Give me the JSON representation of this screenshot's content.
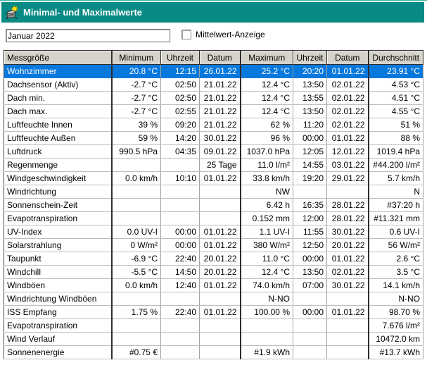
{
  "window": {
    "title": "Minimal- und Maximalwerte"
  },
  "toolbar": {
    "period_value": "Januar 2022",
    "checkbox_label": "Mittelwert-Anzeige",
    "checkbox_checked": false
  },
  "colors": {
    "titlebar": "#0a8a85",
    "selection": "#0778dc",
    "header-bg": "#d5d2ca",
    "grid-line": "#a3a3a3",
    "grid-line-h": "#bdbdbd"
  },
  "table": {
    "columns": [
      "Messgröße",
      "Minimum",
      "Uhrzeit",
      "Datum",
      "Maximum",
      "Uhrzeit",
      "Datum",
      "Durchschnitt"
    ],
    "selected_row_index": 0,
    "rows": [
      [
        "Wohnzimmer",
        "20.8 °C",
        "12:15",
        "26.01.22",
        "25.2 °C",
        "20:20",
        "01.01.22",
        "23.91 °C"
      ],
      [
        "Dachsensor (Aktiv)",
        "-2.7 °C",
        "02:50",
        "21.01.22",
        "12.4 °C",
        "13:50",
        "02.01.22",
        "4.53 °C"
      ],
      [
        "Dach min.",
        "-2.7 °C",
        "02:50",
        "21.01.22",
        "12.4 °C",
        "13:55",
        "02.01.22",
        "4.51 °C"
      ],
      [
        "Dach max.",
        "-2.7 °C",
        "02:55",
        "21.01.22",
        "12.4 °C",
        "13:50",
        "02.01.22",
        "4.55 °C"
      ],
      [
        "Luftfeuchte Innen",
        "39 %",
        "09:20",
        "21.01.22",
        "62 %",
        "11:20",
        "02.01.22",
        "51 %"
      ],
      [
        "Luftfeuchte Außen",
        "59 %",
        "14:20",
        "30.01.22",
        "96 %",
        "00:00",
        "01.01.22",
        "88 %"
      ],
      [
        "Luftdruck",
        "990.5 hPa",
        "04:35",
        "09.01.22",
        "1037.0 hPa",
        "12:05",
        "12.01.22",
        "1019.4 hPa"
      ],
      [
        "Regenmenge",
        "",
        "",
        "25 Tage",
        "11.0 l/m²",
        "14:55",
        "03.01.22",
        "#44.200 l/m²"
      ],
      [
        "Windgeschwindigkeit",
        "0.0 km/h",
        "10:10",
        "01.01.22",
        "33.8 km/h",
        "19:20",
        "29.01.22",
        "5.7 km/h"
      ],
      [
        "Windrichtung",
        "",
        "",
        "",
        "NW",
        "",
        "",
        "N"
      ],
      [
        "Sonnenschein-Zeit",
        "",
        "",
        "",
        "6.42 h",
        "16:35",
        "28.01.22",
        "#37:20 h"
      ],
      [
        "Evapotranspiration",
        "",
        "",
        "",
        "0.152 mm",
        "12:00",
        "28.01.22",
        "#11.321 mm"
      ],
      [
        "UV-Index",
        "0.0 UV-I",
        "00:00",
        "01.01.22",
        "1.1 UV-I",
        "11:55",
        "30.01.22",
        "0.6 UV-I"
      ],
      [
        "Solarstrahlung",
        "0 W/m²",
        "00:00",
        "01.01.22",
        "380 W/m²",
        "12:50",
        "20.01.22",
        "56 W/m²"
      ],
      [
        "Taupunkt",
        "-6.9 °C",
        "22:40",
        "20.01.22",
        "11.0 °C",
        "00:00",
        "01.01.22",
        "2.6 °C"
      ],
      [
        "Windchill",
        "-5.5 °C",
        "14:50",
        "20.01.22",
        "12.4 °C",
        "13:50",
        "02.01.22",
        "3.5 °C"
      ],
      [
        "Windböen",
        "0.0 km/h",
        "12:40",
        "01.01.22",
        "74.0 km/h",
        "07:00",
        "30.01.22",
        "14.1 km/h"
      ],
      [
        "Windrichtung Windböen",
        "",
        "",
        "",
        "N-NO",
        "",
        "",
        "N-NO"
      ],
      [
        "ISS Empfang",
        "1.75 %",
        "22:40",
        "01.01.22",
        "100.00 %",
        "00:00",
        "01.01.22",
        "98.70 %"
      ],
      [
        "Evapotranspiration",
        "",
        "",
        "",
        "",
        "",
        "",
        "7.676 l/m²"
      ],
      [
        "Wind Verlauf",
        "",
        "",
        "",
        "",
        "",
        "",
        "10472.0 km"
      ],
      [
        "Sonnenenergie",
        "#0.75 €",
        "",
        "",
        "#1.9 kWh",
        "",
        "",
        "#13.7 kWh"
      ]
    ]
  }
}
